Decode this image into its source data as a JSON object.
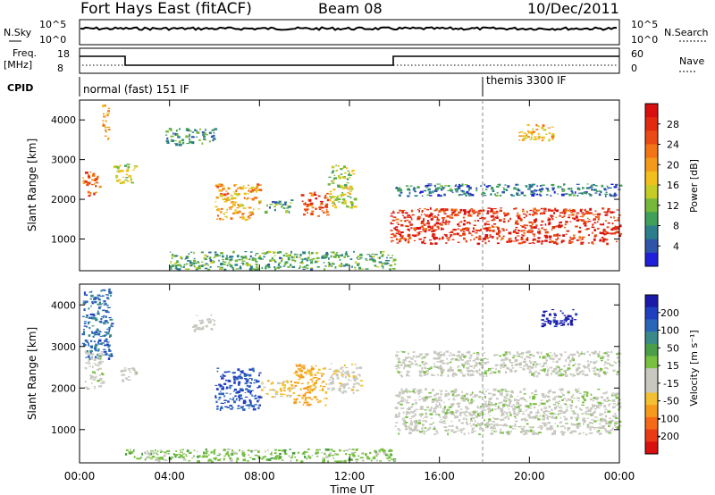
{
  "header": {
    "station": "Fort Hays East (fitACF)",
    "beam": "Beam 08",
    "date": "10/Dec/2011"
  },
  "strips": {
    "nsky_label": "N.Sky",
    "nsky_ticks": [
      "10^5",
      "10^0"
    ],
    "nsearch_label": "N.Search",
    "nsearch_ticks": [
      "10^5",
      "10^0"
    ],
    "freq_label": "Freq.",
    "freq_unit": "[MHz]",
    "freq_ticks": [
      "18",
      "8"
    ],
    "nave_label": "Nave",
    "nave_ticks": [
      "60",
      "0"
    ],
    "cpid_label": "CPID",
    "cpid_mode1": "normal (fast) 151 IF",
    "cpid_mode2": "themis 3300 IF"
  },
  "colorbars": {
    "power": {
      "label": "Power [dB]",
      "ticks": [
        "28",
        "24",
        "20",
        "16",
        "12",
        "8",
        "4"
      ],
      "colors": [
        "#2020d8",
        "#2f55a8",
        "#2b7f8a",
        "#3fa05a",
        "#76b83a",
        "#c4cc25",
        "#f2c01c",
        "#f49a1a",
        "#f27415",
        "#ea4a14",
        "#e22a10",
        "#d80f0f"
      ]
    },
    "velocity": {
      "label": "Velocity [m s⁻¹]",
      "ticks": [
        "200",
        "100",
        "50",
        "15",
        "-15",
        "-50",
        "-100",
        "-200"
      ],
      "colors": [
        "#1a1aa8",
        "#1f3fbf",
        "#2a66b8",
        "#3a8a8a",
        "#4a9e48",
        "#78c040",
        "#c8c8c0",
        "#c8c8c0",
        "#f2c030",
        "#f59a1c",
        "#f56a18",
        "#ea3a14",
        "#d81010"
      ]
    }
  },
  "axes": {
    "ylabel": "Slant Range [km]",
    "y_ticks": [
      "4000",
      "3000",
      "2000",
      "1000"
    ],
    "x_ticks": [
      "00:00",
      "04:00",
      "08:00",
      "12:00",
      "16:00",
      "20:00",
      "00:00"
    ],
    "xlabel": "Time UT"
  },
  "chart_data": [
    {
      "type": "heatmap",
      "title": "Power",
      "xlabel": "Time UT",
      "ylabel": "Slant Range [km]",
      "xlim": [
        0,
        24
      ],
      "ylim": [
        200,
        4500
      ],
      "colorbar_range_db": [
        0,
        32
      ],
      "regions": [
        {
          "x": [
            0.1,
            0.9
          ],
          "y": [
            2100,
            2700
          ],
          "v": 24
        },
        {
          "x": [
            1.0,
            1.3
          ],
          "y": [
            3500,
            4400
          ],
          "v": 20
        },
        {
          "x": [
            1.5,
            2.5
          ],
          "y": [
            2400,
            2900
          ],
          "v": 14
        },
        {
          "x": [
            3.8,
            6.0
          ],
          "y": [
            3400,
            3800
          ],
          "v": 8
        },
        {
          "x": [
            6.0,
            8.0
          ],
          "y": [
            1500,
            2400
          ],
          "v": 20
        },
        {
          "x": [
            8.2,
            9.4
          ],
          "y": [
            1700,
            2000
          ],
          "v": 10
        },
        {
          "x": [
            9.8,
            11.0
          ],
          "y": [
            1600,
            2200
          ],
          "v": 26
        },
        {
          "x": [
            11.0,
            12.2
          ],
          "y": [
            1800,
            2900
          ],
          "v": 14
        },
        {
          "x": [
            13.8,
            24.0
          ],
          "y": [
            900,
            1800
          ],
          "v": 28
        },
        {
          "x": [
            14.0,
            24.0
          ],
          "y": [
            2100,
            2400
          ],
          "v": 6
        },
        {
          "x": [
            19.5,
            21.0
          ],
          "y": [
            3500,
            3900
          ],
          "v": 18
        },
        {
          "x": [
            4.0,
            14.0
          ],
          "y": [
            250,
            700
          ],
          "v": 10
        }
      ]
    },
    {
      "type": "heatmap",
      "title": "Velocity",
      "xlabel": "Time UT",
      "ylabel": "Slant Range [km]",
      "xlim": [
        0,
        24
      ],
      "ylim": [
        200,
        4500
      ],
      "colorbar_range": [
        -200,
        200
      ],
      "regions": [
        {
          "x": [
            0.1,
            1.4
          ],
          "y": [
            2700,
            4400
          ],
          "v": 150
        },
        {
          "x": [
            0.2,
            1.0
          ],
          "y": [
            2000,
            2900
          ],
          "v": 0
        },
        {
          "x": [
            1.8,
            2.5
          ],
          "y": [
            2200,
            2500
          ],
          "v": 0
        },
        {
          "x": [
            5.0,
            6.0
          ],
          "y": [
            3400,
            3800
          ],
          "v": -20
        },
        {
          "x": [
            6.0,
            8.0
          ],
          "y": [
            1500,
            2500
          ],
          "v": 180
        },
        {
          "x": [
            8.0,
            9.5
          ],
          "y": [
            1800,
            2200
          ],
          "v": -70
        },
        {
          "x": [
            9.5,
            11.0
          ],
          "y": [
            1600,
            2600
          ],
          "v": -100
        },
        {
          "x": [
            11.0,
            12.5
          ],
          "y": [
            1900,
            2600
          ],
          "v": -40
        },
        {
          "x": [
            14.0,
            24.0
          ],
          "y": [
            900,
            2000
          ],
          "v": 0
        },
        {
          "x": [
            14.0,
            24.0
          ],
          "y": [
            2300,
            2900
          ],
          "v": 0
        },
        {
          "x": [
            20.5,
            22.2
          ],
          "y": [
            3500,
            3900
          ],
          "v": 220
        },
        {
          "x": [
            2.0,
            14.0
          ],
          "y": [
            250,
            550
          ],
          "v": 40
        }
      ]
    }
  ]
}
